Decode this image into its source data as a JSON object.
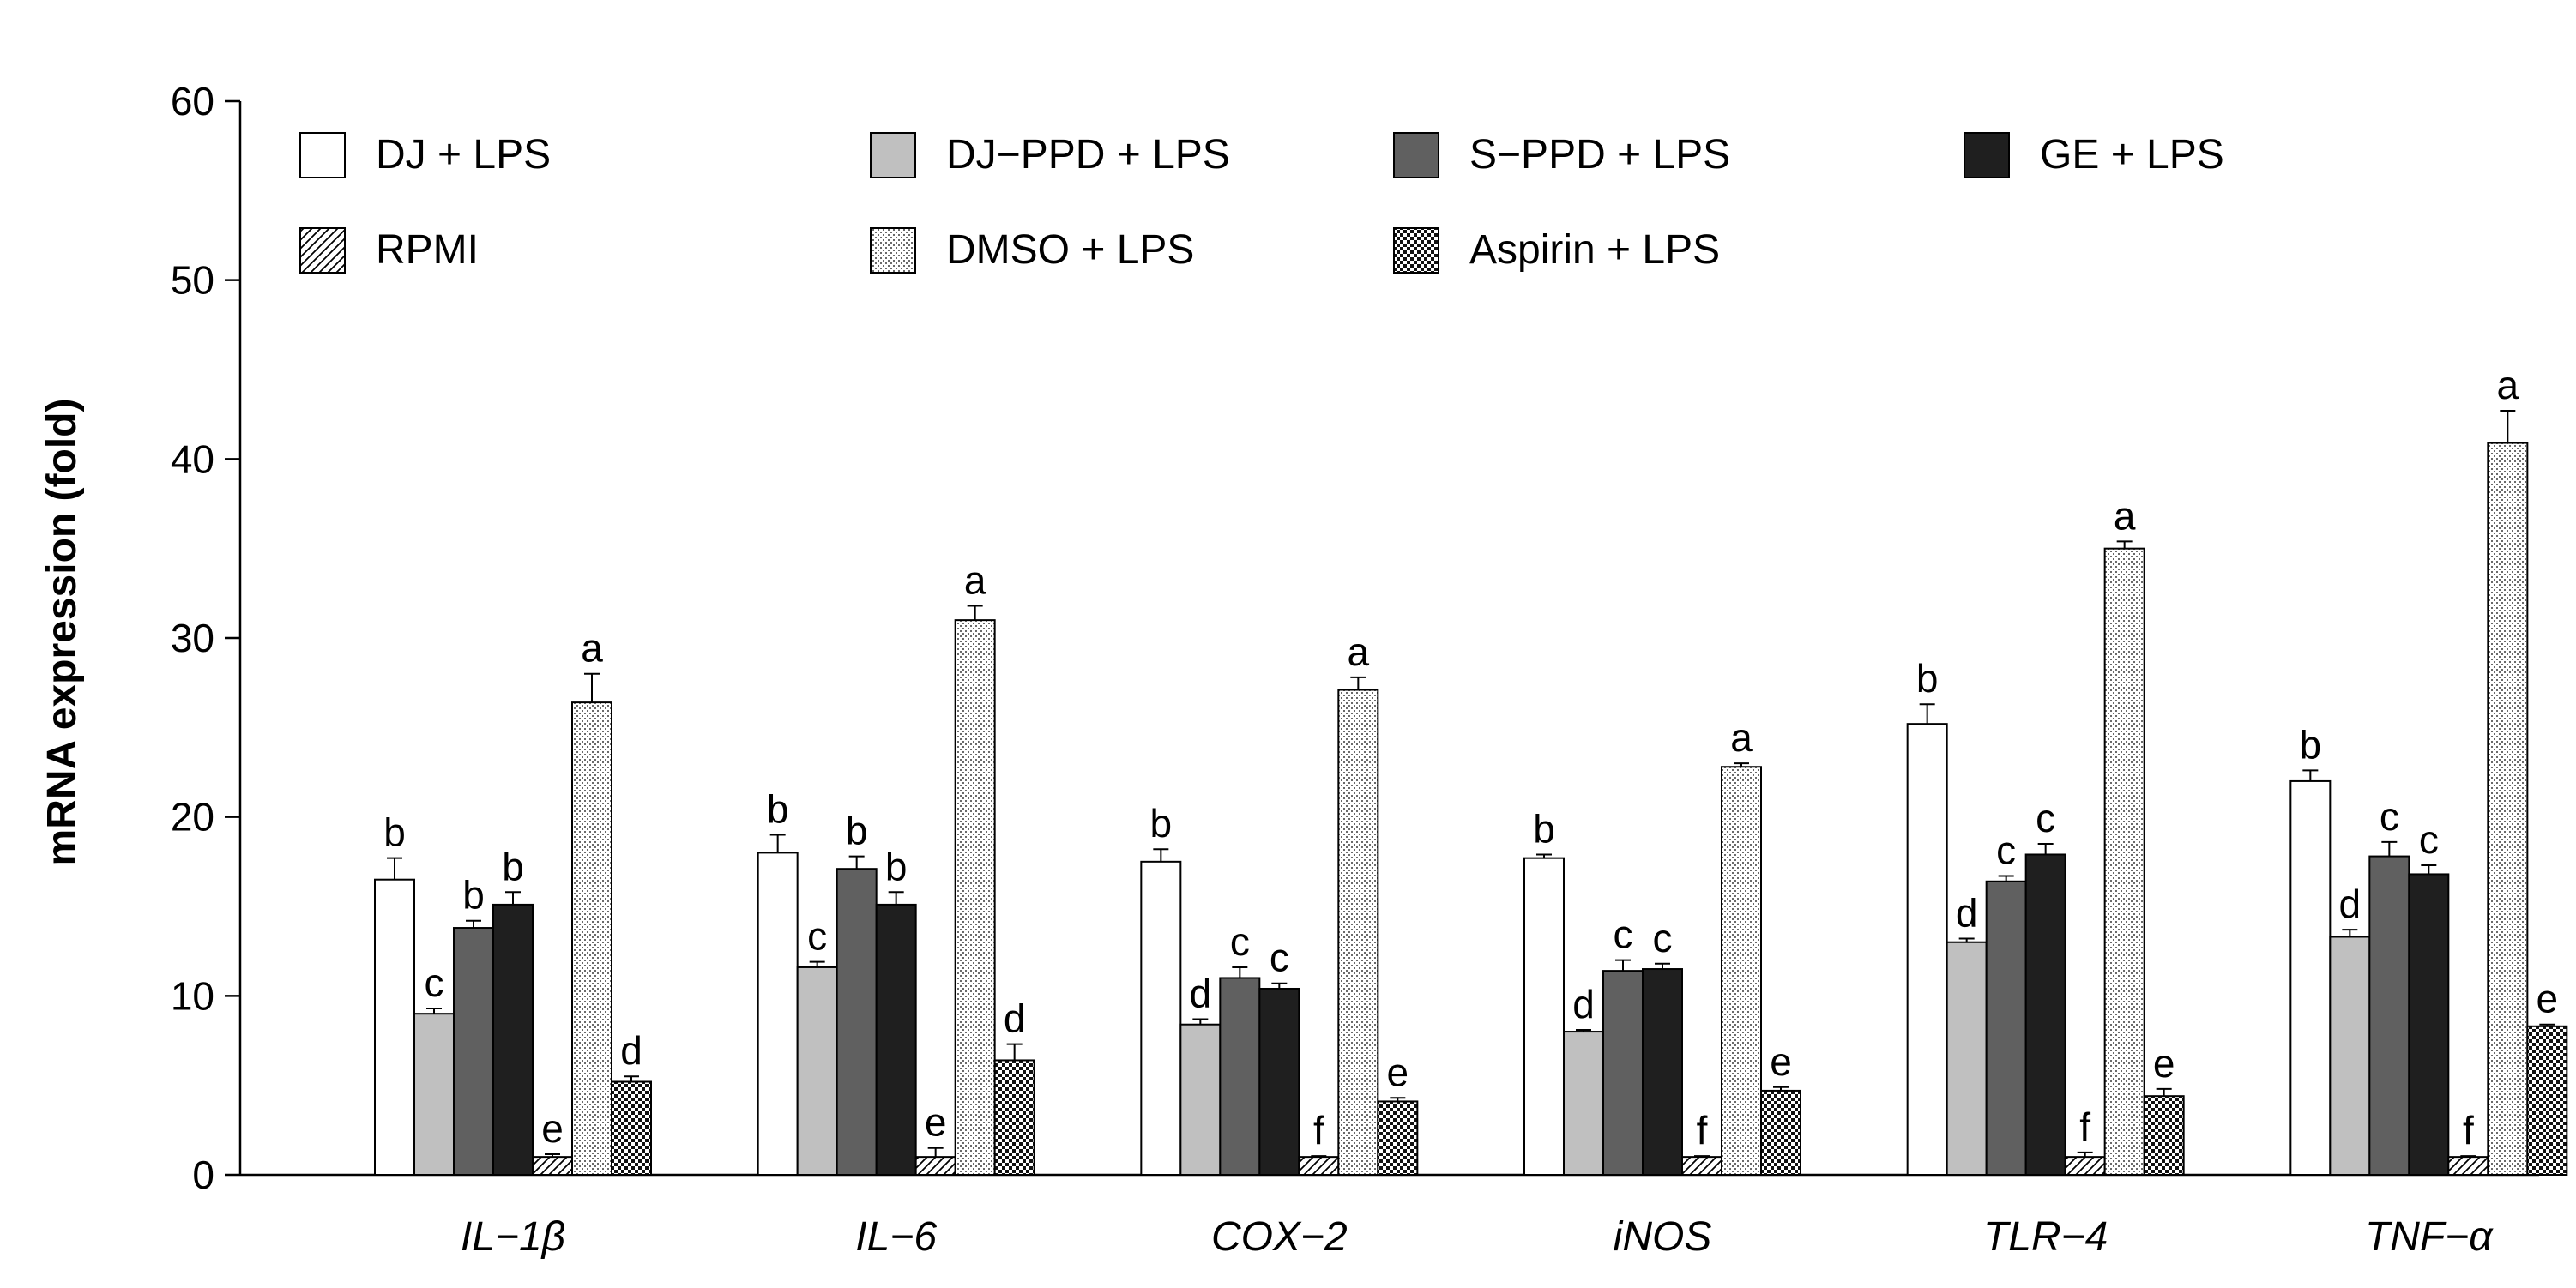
{
  "chart_data": {
    "type": "bar",
    "title": "",
    "xlabel": "",
    "ylabel": "mRNA expression (fold)",
    "ylim": [
      0,
      60
    ],
    "yticks": [
      0,
      10,
      20,
      30,
      40,
      50,
      60
    ],
    "grid": false,
    "legend_position": "top",
    "categories": [
      "IL−1β",
      "IL−6",
      "COX−2",
      "iNOS",
      "TLR−4",
      "TNF−α"
    ],
    "series": [
      {
        "name": "DJ + LPS",
        "fill": "white",
        "color": "#ffffff",
        "values": [
          16.5,
          18.0,
          17.5,
          17.7,
          25.2,
          22.0
        ],
        "errors": [
          1.2,
          1.0,
          0.7,
          0.2,
          1.1,
          0.6
        ],
        "labels": [
          "b",
          "b",
          "b",
          "b",
          "b",
          "b"
        ]
      },
      {
        "name": "DJ−PPD + LPS",
        "fill": "light-gray",
        "color": "#c0c0c0",
        "values": [
          9.0,
          11.6,
          8.4,
          8.0,
          13.0,
          13.3
        ],
        "errors": [
          0.3,
          0.3,
          0.3,
          0.1,
          0.2,
          0.4
        ],
        "labels": [
          "c",
          "c",
          "d",
          "d",
          "d",
          "d"
        ]
      },
      {
        "name": "S−PPD + LPS",
        "fill": "dark-gray",
        "color": "#606060",
        "values": [
          13.8,
          17.1,
          11.0,
          11.4,
          16.4,
          17.8
        ],
        "errors": [
          0.4,
          0.7,
          0.6,
          0.6,
          0.3,
          0.8
        ],
        "labels": [
          "b",
          "b",
          "c",
          "c",
          "c",
          "c"
        ]
      },
      {
        "name": "GE + LPS",
        "fill": "black",
        "color": "#1f1f1f",
        "values": [
          15.1,
          15.1,
          10.4,
          11.5,
          17.9,
          16.8
        ],
        "errors": [
          0.7,
          0.7,
          0.3,
          0.3,
          0.6,
          0.5
        ],
        "labels": [
          "b",
          "b",
          "c",
          "c",
          "c",
          "c"
        ]
      },
      {
        "name": "RPMI",
        "fill": "diagonal-hatch",
        "color": "#ffffff",
        "values": [
          1.0,
          1.0,
          1.0,
          1.0,
          1.0,
          1.0
        ],
        "errors": [
          0.15,
          0.5,
          0.05,
          0.05,
          0.25,
          0.05
        ],
        "labels": [
          "e",
          "e",
          "f",
          "f",
          "f",
          "f"
        ]
      },
      {
        "name": "DMSO + LPS",
        "fill": "fine-dots",
        "color": "#e6e6e6",
        "values": [
          26.4,
          31.0,
          27.1,
          22.8,
          35.0,
          40.9
        ],
        "errors": [
          1.6,
          0.8,
          0.7,
          0.2,
          0.4,
          1.8
        ],
        "labels": [
          "a",
          "a",
          "a",
          "a",
          "a",
          "a"
        ]
      },
      {
        "name": "Aspirin + LPS",
        "fill": "checkerboard",
        "color": "#333333",
        "values": [
          5.2,
          6.4,
          4.1,
          4.7,
          4.4,
          8.3
        ],
        "errors": [
          0.3,
          0.9,
          0.2,
          0.2,
          0.4,
          0.1
        ],
        "labels": [
          "d",
          "d",
          "e",
          "e",
          "e",
          "e"
        ]
      }
    ]
  }
}
